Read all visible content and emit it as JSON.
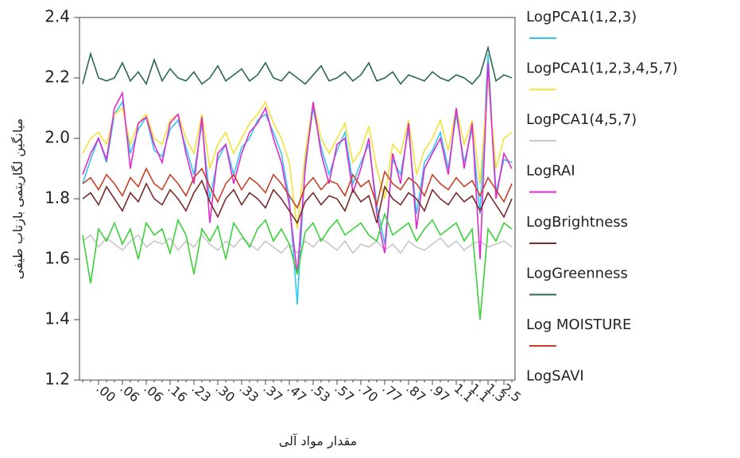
{
  "chart_data": {
    "type": "line",
    "y_label": "میانگین لگاریتمی بازتاب طیفی",
    "x_label": "مقدار مواد آلی",
    "categories": [
      null,
      null,
      ".00",
      null,
      null,
      ".06",
      null,
      null,
      ".06",
      null,
      null,
      ".16",
      null,
      null,
      ".23",
      null,
      null,
      ".30",
      null,
      null,
      ".33",
      null,
      null,
      ".37",
      null,
      null,
      ".47",
      null,
      null,
      ".53",
      null,
      null,
      ".57",
      null,
      null,
      ".70",
      null,
      null,
      ".77",
      null,
      null,
      ".87",
      null,
      null,
      ".97",
      null,
      null,
      "1.1",
      null,
      "1.1",
      null,
      "1.3",
      null,
      "2.5",
      null
    ],
    "ylim": [
      1.2,
      2.4
    ],
    "yticks": [
      1.2,
      1.4,
      1.6,
      1.8,
      {
        "value": 2,
        "label": "2.0"
      },
      2.2,
      2.4
    ],
    "series": [
      {
        "name": "LogPCA1(1,2,3)",
        "color": "#2ec8f0",
        "values": [
          1.85,
          1.93,
          2.0,
          1.92,
          2.08,
          2.12,
          1.95,
          2.03,
          2.07,
          1.96,
          1.94,
          2.03,
          2.06,
          1.97,
          1.88,
          2.05,
          1.8,
          1.93,
          1.98,
          1.88,
          1.97,
          2.0,
          2.06,
          2.08,
          2.02,
          1.95,
          1.8,
          1.45,
          1.92,
          2.1,
          1.97,
          1.88,
          1.96,
          2.02,
          1.85,
          1.92,
          1.98,
          1.78,
          1.65,
          1.93,
          1.88,
          2.03,
          1.75,
          1.92,
          1.96,
          2.02,
          1.9,
          2.08,
          1.92,
          2.03,
          1.75,
          2.28,
          1.82,
          1.93,
          1.92
        ]
      },
      {
        "name": "LogPCA1(1,2,3,4,5,7)",
        "color": "#f2e23a",
        "values": [
          1.95,
          2.0,
          2.02,
          1.98,
          2.08,
          2.1,
          1.98,
          2.05,
          2.08,
          2.0,
          1.98,
          2.06,
          2.08,
          2.0,
          1.95,
          2.08,
          1.9,
          1.98,
          2.02,
          1.95,
          2.0,
          2.05,
          2.08,
          2.12,
          2.05,
          2.0,
          1.92,
          1.7,
          1.95,
          2.12,
          2.0,
          1.95,
          2.0,
          2.05,
          1.92,
          1.96,
          2.04,
          1.9,
          1.8,
          1.98,
          1.95,
          2.06,
          1.88,
          1.96,
          2.0,
          2.06,
          1.96,
          2.1,
          1.98,
          2.06,
          1.85,
          2.2,
          1.9,
          2.0,
          2.02
        ]
      },
      {
        "name": "LogPCA1(4,5,7)",
        "color": "#c8c8cc",
        "values": [
          1.66,
          1.68,
          1.64,
          1.67,
          1.65,
          1.63,
          1.66,
          1.68,
          1.64,
          1.66,
          1.65,
          1.67,
          1.63,
          1.66,
          1.64,
          1.68,
          1.65,
          1.63,
          1.66,
          1.64,
          1.67,
          1.65,
          1.63,
          1.66,
          1.64,
          1.62,
          1.65,
          1.62,
          1.66,
          1.64,
          1.67,
          1.65,
          1.63,
          1.66,
          1.62,
          1.65,
          1.64,
          1.66,
          1.63,
          1.65,
          1.62,
          1.66,
          1.64,
          1.63,
          1.65,
          1.67,
          1.64,
          1.66,
          1.63,
          1.65,
          1.66,
          1.64,
          1.65,
          1.66,
          1.64
        ]
      },
      {
        "name": "LogRAI",
        "color": "#e02ad0",
        "values": [
          1.88,
          1.95,
          2.0,
          1.93,
          2.1,
          2.15,
          1.9,
          2.05,
          2.07,
          1.98,
          1.92,
          2.05,
          2.08,
          1.95,
          1.85,
          2.07,
          1.72,
          1.95,
          1.98,
          1.85,
          1.95,
          2.02,
          2.05,
          2.1,
          2.0,
          1.92,
          1.78,
          1.55,
          1.9,
          2.12,
          1.95,
          1.85,
          1.98,
          2.0,
          1.82,
          1.9,
          2.0,
          1.75,
          1.62,
          1.95,
          1.85,
          2.05,
          1.7,
          1.9,
          1.95,
          2.0,
          1.88,
          2.1,
          1.9,
          2.05,
          1.6,
          2.25,
          1.8,
          1.95,
          1.9
        ]
      },
      {
        "name": "LogBrightness",
        "color": "#7a2a2a",
        "values": [
          1.8,
          1.82,
          1.78,
          1.84,
          1.8,
          1.76,
          1.82,
          1.79,
          1.85,
          1.8,
          1.78,
          1.83,
          1.8,
          1.76,
          1.82,
          1.86,
          1.79,
          1.74,
          1.8,
          1.83,
          1.78,
          1.82,
          1.8,
          1.77,
          1.83,
          1.8,
          1.76,
          1.72,
          1.79,
          1.82,
          1.78,
          1.81,
          1.8,
          1.76,
          1.83,
          1.79,
          1.81,
          1.72,
          1.84,
          1.8,
          1.78,
          1.82,
          1.8,
          1.76,
          1.83,
          1.8,
          1.78,
          1.82,
          1.79,
          1.81,
          1.76,
          1.82,
          1.78,
          1.74,
          1.8
        ]
      },
      {
        "name": "LogGreenness",
        "color": "#2a6a4a",
        "values": [
          2.18,
          2.28,
          2.2,
          2.19,
          2.2,
          2.25,
          2.19,
          2.22,
          2.18,
          2.26,
          2.19,
          2.23,
          2.2,
          2.19,
          2.22,
          2.18,
          2.2,
          2.24,
          2.19,
          2.21,
          2.23,
          2.19,
          2.21,
          2.25,
          2.2,
          2.19,
          2.22,
          2.2,
          2.18,
          2.21,
          2.24,
          2.19,
          2.2,
          2.22,
          2.19,
          2.21,
          2.25,
          2.19,
          2.2,
          2.22,
          2.18,
          2.21,
          2.2,
          2.19,
          2.22,
          2.2,
          2.19,
          2.21,
          2.2,
          2.18,
          2.21,
          2.3,
          2.19,
          2.21,
          2.2
        ]
      },
      {
        "name": "Log MOISTURE",
        "color": "#c8402a",
        "values": [
          1.85,
          1.87,
          1.83,
          1.88,
          1.85,
          1.81,
          1.87,
          1.84,
          1.9,
          1.85,
          1.83,
          1.88,
          1.85,
          1.81,
          1.87,
          1.9,
          1.84,
          1.79,
          1.85,
          1.88,
          1.83,
          1.87,
          1.85,
          1.82,
          1.88,
          1.85,
          1.81,
          1.77,
          1.84,
          1.87,
          1.83,
          1.86,
          1.85,
          1.81,
          1.88,
          1.84,
          1.86,
          1.78,
          1.89,
          1.85,
          1.83,
          1.87,
          1.85,
          1.81,
          1.88,
          1.85,
          1.83,
          1.87,
          1.84,
          1.86,
          1.81,
          1.87,
          1.83,
          1.79,
          1.85
        ]
      },
      {
        "name": "LogSAVI",
        "color": "#3cd03c",
        "values": [
          1.68,
          1.52,
          1.7,
          1.66,
          1.72,
          1.65,
          1.7,
          1.6,
          1.72,
          1.68,
          1.7,
          1.62,
          1.73,
          1.68,
          1.55,
          1.7,
          1.66,
          1.71,
          1.6,
          1.72,
          1.68,
          1.64,
          1.7,
          1.73,
          1.66,
          1.7,
          1.65,
          1.55,
          1.69,
          1.72,
          1.66,
          1.7,
          1.73,
          1.68,
          1.7,
          1.72,
          1.68,
          1.66,
          1.75,
          1.68,
          1.7,
          1.72,
          1.66,
          1.7,
          1.73,
          1.68,
          1.7,
          1.72,
          1.66,
          1.7,
          1.4,
          1.7,
          1.66,
          1.72,
          1.7
        ]
      }
    ]
  }
}
